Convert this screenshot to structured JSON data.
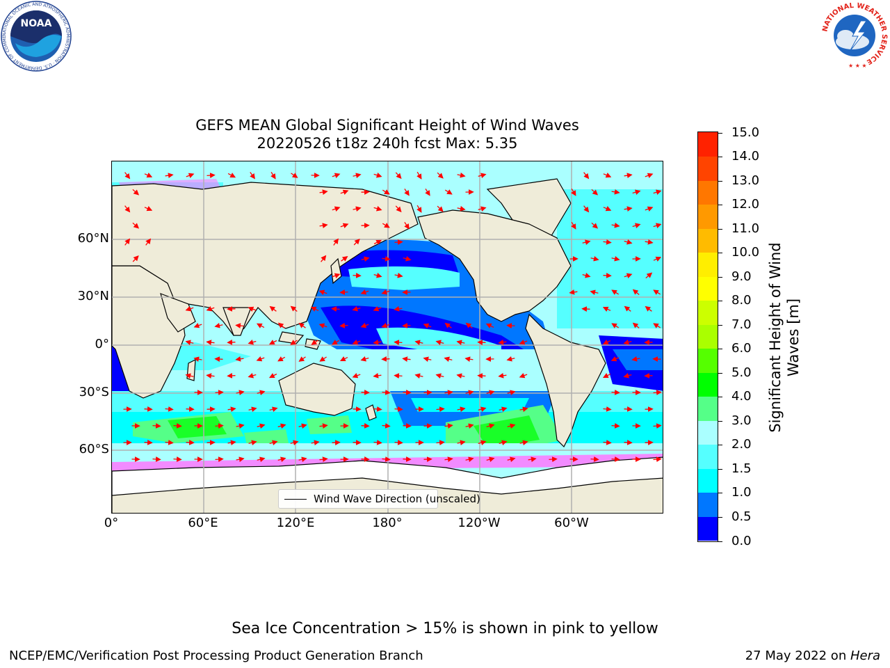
{
  "title": {
    "line1": "GEFS MEAN Global Significant Height of Wind Waves",
    "line2": "20220526 t18z 240h fcst   Max: 5.35"
  },
  "logos": {
    "noaa_text": "NOAA",
    "noaa_ring": "NATIONAL OCEANIC AND ATMOSPHERIC ADMINISTRATION · U.S. DEPARTMENT OF COMMERCE ·",
    "nws_ring": "NATIONAL WEATHER SERVICE"
  },
  "map": {
    "x_ticks": [
      "0°",
      "60°E",
      "120°E",
      "180°",
      "120°W",
      "60°W"
    ],
    "y_ticks": [
      "60°N",
      "30°N",
      "0°",
      "30°S",
      "60°S"
    ],
    "legend_label": "Wind Wave Direction (unscaled)",
    "colors": {
      "land": "#efecd9",
      "grid": "#b0b0b0",
      "arrow": "#ff0000",
      "coast": "#000000"
    }
  },
  "colorbar": {
    "title_line1": "Significant Height of Wind",
    "title_line2": "Waves [m]",
    "tick_labels": [
      "0.0",
      "0.5",
      "1.0",
      "1.5",
      "2.0",
      "3.0",
      "4.0",
      "5.0",
      "6.0",
      "7.0",
      "8.0",
      "9.0",
      "10.0",
      "11.0",
      "12.0",
      "13.0",
      "14.0",
      "15.0"
    ],
    "colors": [
      "#0000ff",
      "#0077ff",
      "#00ffff",
      "#55ffff",
      "#aaffff",
      "#55ff88",
      "#00ff00",
      "#55ff00",
      "#aaff00",
      "#ccff00",
      "#ffff00",
      "#ffee00",
      "#ffbb00",
      "#ff9900",
      "#ff7700",
      "#ff4400",
      "#ff2200"
    ]
  },
  "notes": {
    "ice": "Sea Ice Concentration > 15% is shown in pink to yellow",
    "footer_left": "NCEP/EMC/Verification Post Processing Product Generation Branch",
    "footer_date": "27 May 2022 on ",
    "footer_host": "Hera"
  }
}
